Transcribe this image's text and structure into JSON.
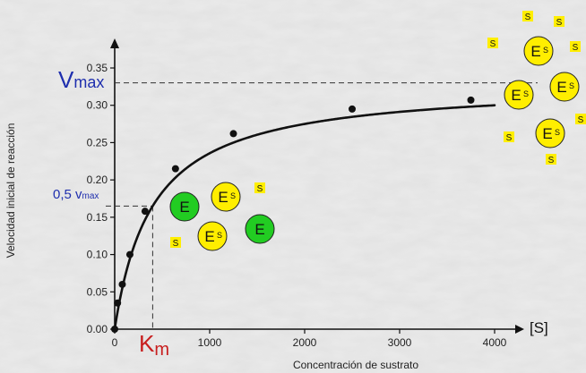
{
  "chart_data": {
    "type": "line",
    "xlabel": "Concentración de sustrato",
    "ylabel": "Velocidad inicial de reacción",
    "xlim": [
      0,
      4000
    ],
    "ylim": [
      0,
      0.35
    ],
    "x_ticks": [
      "0",
      "1000",
      "2000",
      "3000",
      "4000"
    ],
    "y_ticks": [
      "0.00",
      "0.05",
      "0.10",
      "0.15",
      "0.20",
      "0.25",
      "0.30",
      "0.35"
    ],
    "x_axis_end_label": "[S]",
    "grid": false,
    "points": [
      {
        "x": 0,
        "y": 0.0
      },
      {
        "x": 30,
        "y": 0.035
      },
      {
        "x": 80,
        "y": 0.06
      },
      {
        "x": 160,
        "y": 0.1
      },
      {
        "x": 320,
        "y": 0.158
      },
      {
        "x": 640,
        "y": 0.215
      },
      {
        "x": 1250,
        "y": 0.262
      },
      {
        "x": 2500,
        "y": 0.295
      },
      {
        "x": 3750,
        "y": 0.307
      }
    ],
    "curve": {
      "vmax": 0.33,
      "km": 400
    },
    "annotations": {
      "vmax": {
        "main": "V",
        "sub": "max",
        "value": 0.33
      },
      "half_vmax": {
        "main": "0,5 v",
        "sub": "max",
        "value": 0.165
      },
      "km": {
        "main": "K",
        "sub": "m",
        "value": 400
      }
    }
  },
  "legend_figures": {
    "enzyme_letter": "E",
    "substrate_letter": "S"
  },
  "colors": {
    "curve": "#111111",
    "vmax_text": "#1f2fae",
    "km_text": "#c81e1e",
    "enzyme_free": "#22cc22",
    "enzyme_bound": "#ffee00",
    "substrate": "#ffee00"
  }
}
